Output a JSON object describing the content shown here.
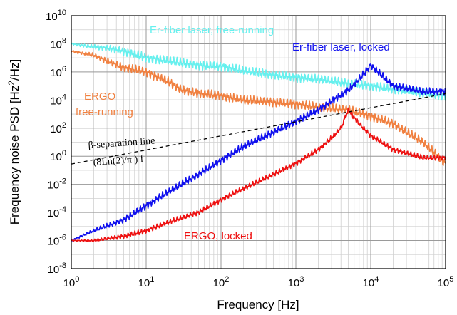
{
  "chart_data": {
    "type": "line",
    "title": "",
    "xlabel": "Frequency [Hz]",
    "ylabel": "Frequency noise PSD [Hz2/Hz]",
    "ylabel_base": "Frequency noise PSD [Hz",
    "ylabel_sup": "2",
    "ylabel_end": "/Hz]",
    "x_scale": "log",
    "y_scale": "log",
    "xlim": [
      1,
      100000
    ],
    "ylim": [
      1e-08,
      10000000000.0
    ],
    "grid": true,
    "x_ticks": [
      {
        "base": "10",
        "exp": "0"
      },
      {
        "base": "10",
        "exp": "1"
      },
      {
        "base": "10",
        "exp": "2"
      },
      {
        "base": "10",
        "exp": "3"
      },
      {
        "base": "10",
        "exp": "4"
      },
      {
        "base": "10",
        "exp": "5"
      }
    ],
    "y_ticks": [
      {
        "base": "10",
        "exp": "-8"
      },
      {
        "base": "10",
        "exp": "-6"
      },
      {
        "base": "10",
        "exp": "-4"
      },
      {
        "base": "10",
        "exp": "-2"
      },
      {
        "base": "10",
        "exp": "0"
      },
      {
        "base": "10",
        "exp": "2"
      },
      {
        "base": "10",
        "exp": "4"
      },
      {
        "base": "10",
        "exp": "6"
      },
      {
        "base": "10",
        "exp": "8"
      },
      {
        "base": "10",
        "exp": "10"
      }
    ],
    "series": [
      {
        "name": "Er-fiber laser, free-running",
        "color": "#66f0ee",
        "x": [
          1,
          2,
          3,
          5,
          10,
          20,
          50,
          100,
          200,
          500,
          1000,
          2000,
          5000,
          10000,
          20000,
          50000,
          100000
        ],
        "y": [
          100000000,
          60000000,
          50000000,
          30000000,
          10000000,
          6000000,
          3000000,
          2500000,
          1200000,
          600000,
          400000,
          300000,
          150000,
          100000,
          60000,
          30000,
          20000
        ]
      },
      {
        "name": "ERGO free-running",
        "color": "#f08040",
        "x": [
          1,
          2,
          3,
          5,
          10,
          20,
          30,
          50,
          100,
          200,
          500,
          1000,
          2000,
          5000,
          10000,
          20000,
          50000,
          100000
        ],
        "y": [
          30000000,
          15000000,
          6000000,
          2000000,
          1000000,
          200000,
          50000,
          30000,
          20000,
          10000,
          7000,
          5000,
          3000,
          2000,
          700,
          200,
          10,
          0.3
        ]
      },
      {
        "name": "Er-fiber laser, locked",
        "color": "#1010ee",
        "x": [
          1,
          2,
          5,
          10,
          20,
          50,
          100,
          200,
          500,
          1000,
          2000,
          3000,
          5000,
          7000,
          10000,
          20000,
          50000,
          100000
        ],
        "y": [
          1e-06,
          5e-06,
          3e-05,
          0.0003,
          0.003,
          0.05,
          0.5,
          5,
          50,
          300,
          2000,
          8000,
          50000,
          300000,
          3000000,
          100000,
          40000,
          40000
        ]
      },
      {
        "name": "ERGO, locked",
        "color": "#ee1010",
        "x": [
          1,
          2,
          5,
          10,
          20,
          50,
          100,
          200,
          500,
          1000,
          2000,
          3000,
          4000,
          5000,
          7000,
          10000,
          20000,
          50000,
          100000
        ],
        "y": [
          1e-06,
          1e-06,
          2e-06,
          5e-06,
          2e-05,
          0.0001,
          0.0008,
          0.005,
          0.05,
          0.3,
          3,
          20,
          100,
          2000,
          200,
          30,
          3,
          0.8,
          0.8
        ]
      },
      {
        "name": "beta-separation line",
        "color": "#000000",
        "x": [
          1,
          100000
        ],
        "y": [
          0.28,
          28000
        ]
      }
    ],
    "annotations": {
      "er_free": "Er-fiber laser, free-running",
      "er_locked": "Er-fiber laser, locked",
      "ergo_free_1": "ERGO",
      "ergo_free_2": "free-running",
      "ergo_locked": "ERGO, locked",
      "beta_1": "β-separation line",
      "beta_2": "(8Ln(2)/π ) f"
    },
    "colors": {
      "er_free": "#66f0ee",
      "ergo_free": "#f08040",
      "er_locked": "#1010ee",
      "ergo_locked": "#ee1010"
    }
  }
}
